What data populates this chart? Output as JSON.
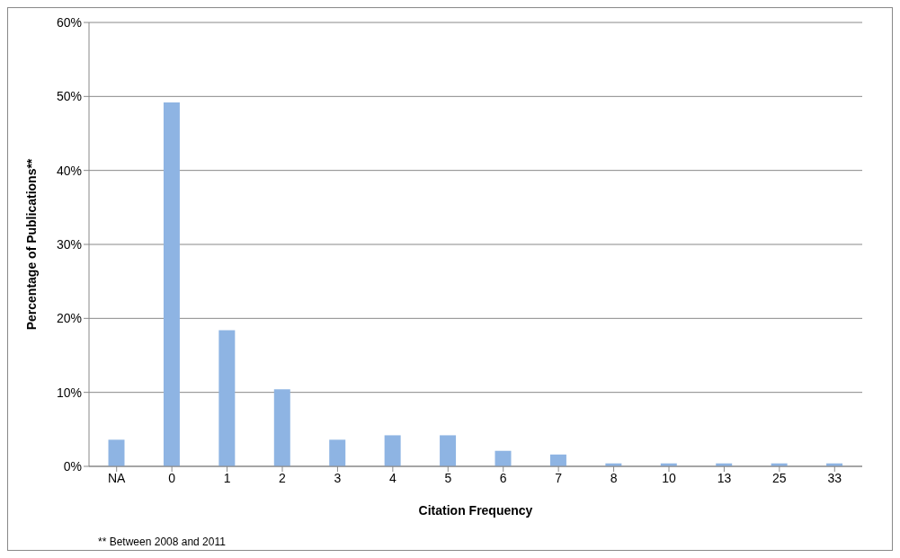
{
  "chart_data": {
    "type": "bar",
    "xlabel": "Citation Frequency",
    "ylabel": "Percentage of Publications**",
    "annotations": [
      "** Between 2008 and 2011"
    ],
    "categories": [
      "NA",
      "0",
      "1",
      "2",
      "3",
      "4",
      "5",
      "6",
      "7",
      "8",
      "10",
      "13",
      "25",
      "33"
    ],
    "values": [
      3.6,
      49.2,
      18.4,
      10.4,
      3.6,
      4.2,
      4.2,
      2.1,
      1.6,
      0.4,
      0.4,
      0.4,
      0.4,
      0.4
    ],
    "color": "#8eb4e3",
    "ylim": [
      0,
      60
    ],
    "yticks": [
      {
        "value": 0,
        "label": "0%"
      },
      {
        "value": 10,
        "label": "10%"
      },
      {
        "value": 20,
        "label": "20%"
      },
      {
        "value": 30,
        "label": "30%"
      },
      {
        "value": 40,
        "label": "40%"
      },
      {
        "value": 50,
        "label": "50%"
      },
      {
        "value": 60,
        "label": "60%"
      }
    ],
    "grid": "y"
  }
}
